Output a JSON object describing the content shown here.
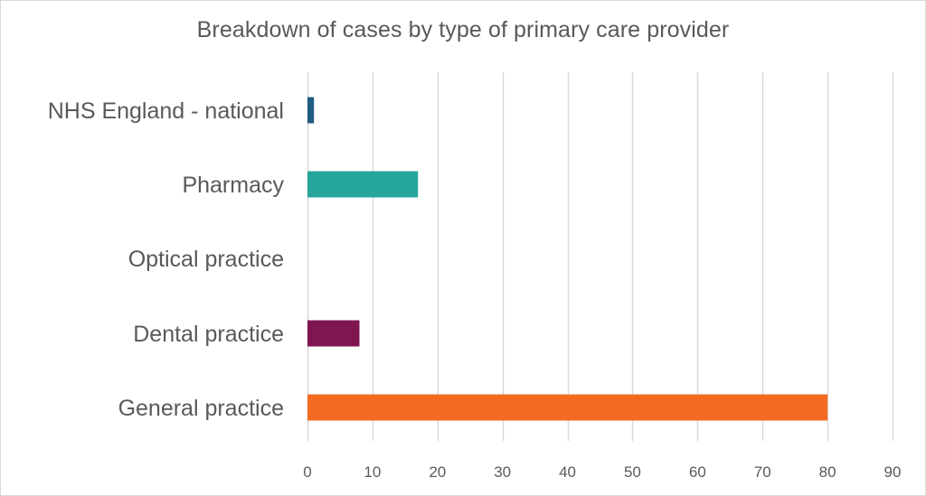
{
  "chart_data": {
    "type": "bar",
    "orientation": "horizontal",
    "title": "Breakdown of cases by type of primary care provider",
    "xlabel": "",
    "ylabel": "",
    "categories": [
      "NHS England - national",
      "Pharmacy",
      "Optical practice",
      "Dental practice",
      "General practice"
    ],
    "values": [
      1,
      17,
      0,
      8,
      80
    ],
    "bar_colors": [
      "#1f5c80",
      "#26a69a",
      "#8b1a4a",
      "#7f1650",
      "#f26b21"
    ],
    "xlim": [
      0,
      90
    ],
    "x_ticks": [
      0,
      10,
      20,
      30,
      40,
      50,
      60,
      70,
      80,
      90
    ],
    "grid": "vertical",
    "legend": "none"
  },
  "colors": {
    "title_text": "#595959",
    "axis_text": "#595959",
    "gridline": "#d9d9d9",
    "border": "#d9d9d9"
  }
}
